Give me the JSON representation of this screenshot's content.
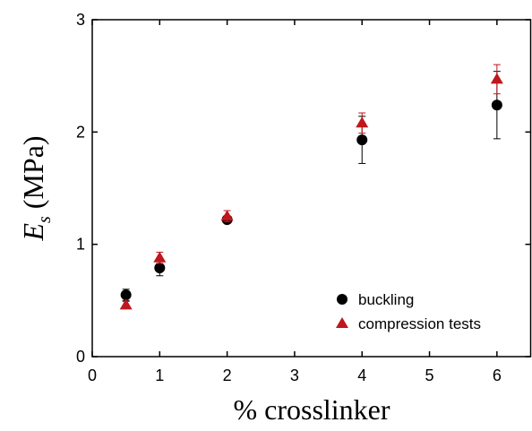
{
  "chart_data": {
    "type": "scatter",
    "xlabel": "% crosslinker",
    "ylabel": {
      "symbol": "E",
      "subscript": "s",
      "unit": "(MPa)"
    },
    "xlim": [
      0,
      6.5
    ],
    "xticks": [
      0,
      1,
      2,
      3,
      4,
      5,
      6
    ],
    "ylim": [
      0,
      3
    ],
    "yticks": [
      0,
      1,
      2,
      3
    ],
    "legend": "lower right",
    "series": [
      {
        "name": "buckling",
        "color": "#000000",
        "marker": "circle",
        "x": [
          0.5,
          1,
          2,
          4,
          6
        ],
        "values": [
          0.55,
          0.79,
          1.22,
          1.93,
          2.24
        ],
        "errors": [
          0.05,
          0.07,
          0.03,
          0.21,
          0.3
        ]
      },
      {
        "name": "compression tests",
        "color": "#c0161d",
        "marker": "triangle",
        "x": [
          0.5,
          1,
          2,
          4,
          6
        ],
        "values": [
          0.46,
          0.88,
          1.25,
          2.08,
          2.47
        ],
        "errors": [
          0.03,
          0.05,
          0.05,
          0.09,
          0.13
        ]
      }
    ]
  }
}
